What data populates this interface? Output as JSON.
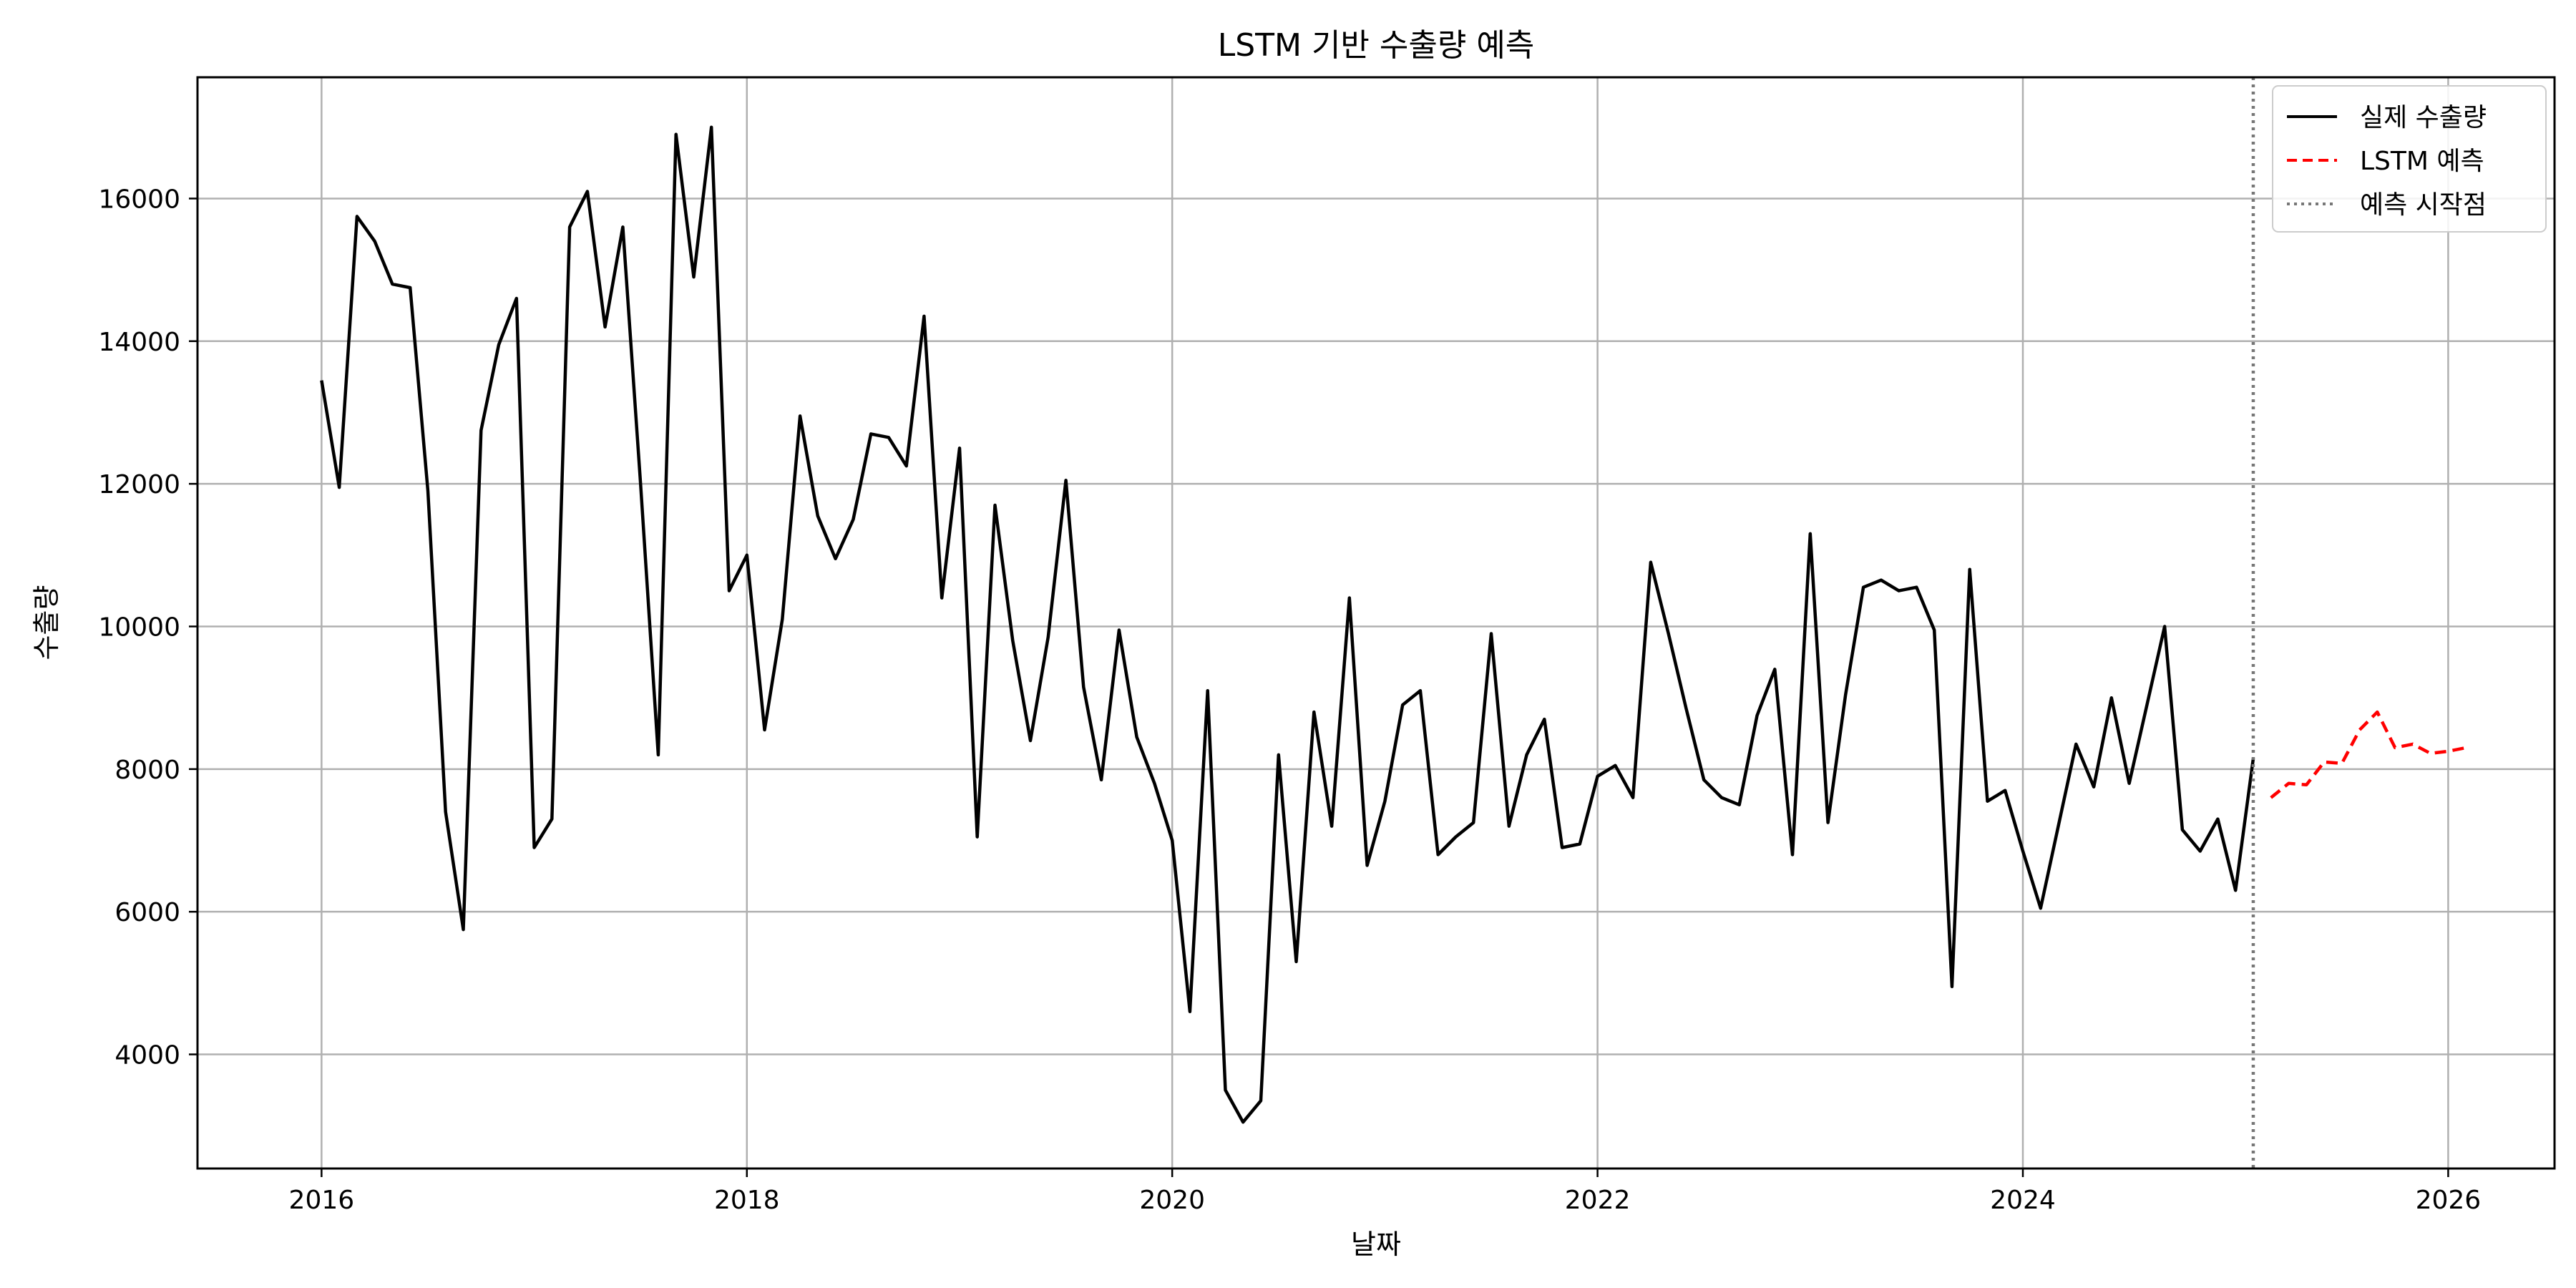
{
  "chart_data": {
    "type": "line",
    "title": "LSTM 기반 수출량 예측",
    "xlabel": "날짜",
    "ylabel": "수출량",
    "xlim": [
      "2015-06-01",
      "2026-07-01"
    ],
    "ylim": [
      2400,
      17700
    ],
    "x_ticks": [
      "2016",
      "2018",
      "2020",
      "2022",
      "2024",
      "2026"
    ],
    "y_ticks": [
      4000,
      6000,
      8000,
      10000,
      12000,
      14000,
      16000
    ],
    "grid": true,
    "legend_position": "top-right",
    "colors": {
      "actual": "#000000",
      "forecast": "#ff0000",
      "forecast_start": "#777777",
      "grid": "#b0b0b0"
    },
    "series": [
      {
        "name": "실제 수출량",
        "style": "solid",
        "x": [
          "2016-01",
          "2016-02",
          "2016-03",
          "2016-04",
          "2016-05",
          "2016-06",
          "2016-07",
          "2016-08",
          "2016-09",
          "2016-10",
          "2016-11",
          "2016-12",
          "2017-01",
          "2017-02",
          "2017-03",
          "2017-04",
          "2017-05",
          "2017-06",
          "2017-07",
          "2017-08",
          "2017-09",
          "2017-10",
          "2017-11",
          "2017-12",
          "2018-01",
          "2018-02",
          "2018-03",
          "2018-04",
          "2018-05",
          "2018-06",
          "2018-07",
          "2018-08",
          "2018-09",
          "2018-10",
          "2018-11",
          "2018-12",
          "2019-01",
          "2019-02",
          "2019-03",
          "2019-04",
          "2019-05",
          "2019-06",
          "2019-07",
          "2019-08",
          "2019-09",
          "2019-10",
          "2019-11",
          "2019-12",
          "2020-01",
          "2020-02",
          "2020-03",
          "2020-04",
          "2020-05",
          "2020-06",
          "2020-07",
          "2020-08",
          "2020-09",
          "2020-10",
          "2020-11",
          "2020-12",
          "2021-01",
          "2021-02",
          "2021-03",
          "2021-04",
          "2021-05",
          "2021-06",
          "2021-07",
          "2021-08",
          "2021-09",
          "2021-10",
          "2021-11",
          "2021-12",
          "2022-01",
          "2022-02",
          "2022-03",
          "2022-04",
          "2022-05",
          "2022-06",
          "2022-07",
          "2022-08",
          "2022-09",
          "2022-10",
          "2022-11",
          "2022-12",
          "2023-01",
          "2023-02",
          "2023-03",
          "2023-04",
          "2023-05",
          "2023-06",
          "2023-07",
          "2023-08",
          "2023-09",
          "2023-10",
          "2023-11",
          "2023-12",
          "2024-01",
          "2024-02",
          "2024-03",
          "2024-04",
          "2024-05",
          "2024-06",
          "2024-07",
          "2024-08",
          "2024-09",
          "2024-10",
          "2024-11",
          "2024-12",
          "2025-01",
          "2025-02"
        ],
        "values": [
          13450,
          11950,
          15750,
          15400,
          14800,
          14750,
          11900,
          7400,
          5750,
          12750,
          13950,
          14600,
          6900,
          7300,
          15600,
          16100,
          14200,
          15600,
          12000,
          8200,
          16900,
          14900,
          17000,
          10500,
          11000,
          8550,
          10100,
          12950,
          11550,
          10950,
          11500,
          12700,
          12650,
          12250,
          14350,
          10400,
          12500,
          7050,
          11700,
          9800,
          8400,
          9850,
          12050,
          9150,
          7850,
          9950,
          8450,
          7800,
          7000,
          4600,
          9100,
          3500,
          3050,
          3350,
          8200,
          5300,
          8800,
          7200,
          10400,
          6650,
          7550,
          8900,
          9100,
          6800,
          7050,
          7250,
          9900,
          7200,
          8200,
          8700,
          6900,
          6950,
          7900,
          8050,
          7600,
          10900,
          9900,
          8850,
          7850,
          7600,
          7500,
          8750,
          9400,
          6800,
          11300,
          7250,
          9050,
          10550,
          10650,
          10500,
          10550,
          9950,
          4950,
          10800,
          7550,
          7700,
          6850,
          6050,
          7200,
          8350,
          7750,
          9000,
          7800,
          8900,
          10000,
          7150,
          6850,
          7300,
          6300,
          8150
        ]
      },
      {
        "name": "LSTM 예측",
        "style": "dashed",
        "x": [
          "2025-03",
          "2025-04",
          "2025-05",
          "2025-06",
          "2025-07",
          "2025-08",
          "2025-09",
          "2025-10",
          "2025-11",
          "2025-12",
          "2026-01",
          "2026-02"
        ],
        "values": [
          7600,
          7800,
          7780,
          8100,
          8080,
          8550,
          8800,
          8300,
          8350,
          8220,
          8250,
          8300
        ]
      }
    ],
    "vertical_marker": {
      "name": "예측 시작점",
      "x": "2025-02",
      "style": "dotted"
    }
  }
}
